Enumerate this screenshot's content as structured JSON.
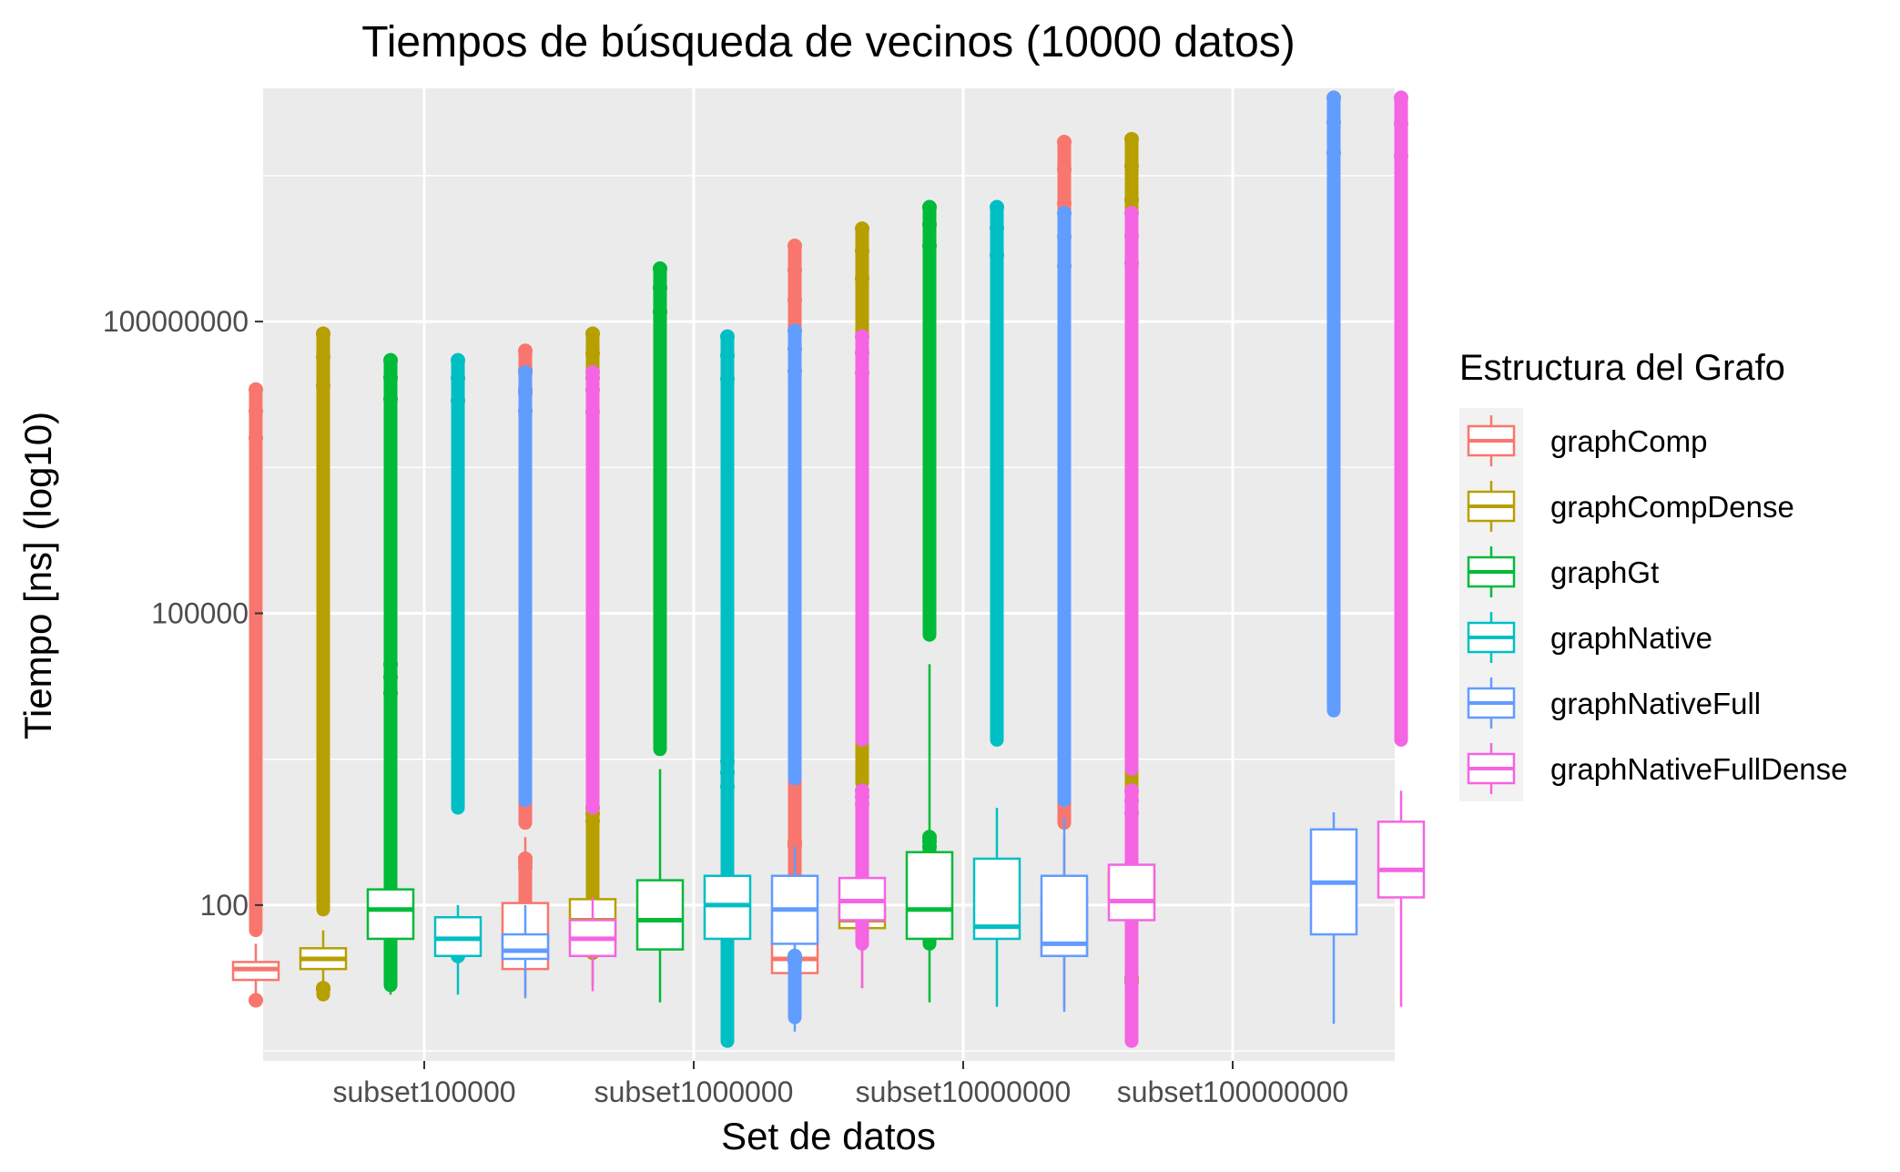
{
  "chart_data": {
    "type": "boxplot",
    "title": "Tiempos de búsqueda de vecinos (10000 datos)",
    "xlabel": "Set de datos",
    "ylabel": "Tiempo [ns] (log10)",
    "y_scale": "log10",
    "ylim": [
      2.5,
      25000000000.0
    ],
    "y_ticks": [
      {
        "value": 100,
        "label": "100"
      },
      {
        "value": 100000,
        "label": "100000"
      },
      {
        "value": 100000000,
        "label": "100000000"
      }
    ],
    "y_minor_ticks": [
      3.16,
      3162,
      3162000,
      3162000000
    ],
    "categories": [
      "subset100000",
      "subset1000000",
      "subset10000000",
      "subset100000000"
    ],
    "grid": true,
    "legend": {
      "title": "Estructura del Grafo",
      "placement": "right"
    },
    "series": [
      {
        "name": "graphComp",
        "color": "#F8766D",
        "boxes": [
          {
            "min": 10.5,
            "q1": 17,
            "median": 22,
            "q3": 26,
            "max": 31,
            "whisker_low": 12,
            "whisker_high": 40,
            "outlier_low": [
              10.5
            ],
            "outlier_high_from": 55,
            "outlier_high_to": 20000000
          },
          {
            "min": 28,
            "q1": 22,
            "median": 45,
            "q3": 105,
            "whisker_low": 12,
            "whisker_high": 500,
            "outlier_low_from": 30,
            "outlier_low_to": 300,
            "outlier_high_from": 700,
            "outlier_high_to": 50000000
          },
          {
            "min": 45,
            "q1": 20,
            "median": 28,
            "q3": 60,
            "whisker_low": 6,
            "whisker_high": 250,
            "outlier_low_from": 160,
            "outlier_low_to": 450,
            "outlier_low_extra": [
              45
            ],
            "outlier_high_from": 350,
            "outlier_high_to": 600000000
          },
          {
            "q1": 30,
            "median": 55,
            "q3": 125,
            "whisker_low": 9,
            "whisker_high": 500,
            "outlier_high_from": 700,
            "outlier_high_to": 7000000000
          }
        ]
      },
      {
        "name": "graphCompDense",
        "color": "#B79F00",
        "boxes": [
          {
            "q1": 22,
            "median": 28,
            "q3": 36,
            "whisker_low": 14,
            "whisker_high": 55,
            "outlier_low_from": 12,
            "outlier_low_to": 14,
            "outlier_high_from": 90,
            "outlier_high_to": 75000000
          },
          {
            "q1": 40,
            "median": 70,
            "q3": 115,
            "whisker_low": 15,
            "whisker_high": 200,
            "outlier_low_from": 32,
            "outlier_low_to": 1000,
            "outlier_high_from": 650,
            "outlier_high_to": 75000000
          },
          {
            "q1": 58,
            "median": 70,
            "q3": 100,
            "whisker_low": 14,
            "whisker_high": 200,
            "outlier_high_from": 1800,
            "outlier_high_to": 900000000
          },
          {
            "q1": 100,
            "median": 140,
            "q3": 220,
            "whisker_low": 18,
            "whisker_high": 500,
            "outlier_low_from": 5,
            "outlier_low_to": 18,
            "outlier_high_from": 900,
            "outlier_high_to": 7500000000
          }
        ]
      },
      {
        "name": "graphGt",
        "color": "#00BA38",
        "boxes": [
          {
            "q1": 45,
            "median": 90,
            "q3": 145,
            "whisker_low": 12,
            "whisker_high": 800,
            "outlier_low_from": 15,
            "outlier_low_to": 30000,
            "outlier_high_from": 1500,
            "outlier_high_to": 40000000
          },
          {
            "q1": 35,
            "median": 70,
            "q3": 180,
            "whisker_low": 10,
            "whisker_high": 2500,
            "outlier_high_from": 4000,
            "outlier_high_to": 350000000
          },
          {
            "q1": 45,
            "median": 90,
            "q3": 350,
            "whisker_low": 10,
            "whisker_high": 30000,
            "outlier_low_from": 40,
            "outlier_low_to": 500,
            "outlier_high_from": 60000,
            "outlier_high_to": 1500000000
          },
          null
        ]
      },
      {
        "name": "graphNative",
        "color": "#00BFC4",
        "boxes": [
          {
            "q1": 30,
            "median": 45,
            "q3": 75,
            "whisker_low": 12,
            "whisker_high": 100,
            "outlier_low": [
              30
            ],
            "outlier_high_from": 1000,
            "outlier_high_to": 40000000
          },
          {
            "q1": 45,
            "median": 100,
            "q3": 200,
            "whisker_low": 13,
            "whisker_high": 300,
            "outlier_low_from": 4,
            "outlier_low_to": 3000,
            "outlier_high_from": 1000,
            "outlier_high_to": 70000000
          },
          {
            "q1": 45,
            "median": 60,
            "q3": 300,
            "whisker_low": 9,
            "whisker_high": 1000,
            "outlier_high_from": 5000,
            "outlier_high_to": 1500000000
          },
          null
        ]
      },
      {
        "name": "graphNativeFull",
        "color": "#619CFF",
        "boxes": [
          {
            "q1": 28,
            "median": 34,
            "q3": 50,
            "whisker_low": 11,
            "whisker_high": 100,
            "outlier_high_from": 1200,
            "outlier_high_to": 30000000
          },
          {
            "q1": 40,
            "median": 90,
            "q3": 200,
            "whisker_low": 5,
            "whisker_high": 400,
            "outlier_low_from": 7,
            "outlier_low_to": 30,
            "outlier_high_from": 2000,
            "outlier_high_to": 80000000
          },
          {
            "q1": 30,
            "median": 40,
            "q3": 200,
            "whisker_low": 8,
            "whisker_high": 800,
            "outlier_high_from": 1200,
            "outlier_high_to": 1300000000
          },
          {
            "q1": 50,
            "median": 170,
            "q3": 600,
            "whisker_low": 6,
            "whisker_high": 900,
            "outlier_high_from": 10000,
            "outlier_high_to": 20000000000
          }
        ]
      },
      {
        "name": "graphNativeFullDense",
        "color": "#F564E3",
        "boxes": [
          {
            "q1": 30,
            "median": 45,
            "q3": 70,
            "whisker_low": 13,
            "whisker_high": 120,
            "outlier_high_from": 1000,
            "outlier_high_to": 30000000
          },
          {
            "q1": 70,
            "median": 110,
            "q3": 190,
            "whisker_low": 14,
            "whisker_high": 450,
            "outlier_low_from": 40,
            "outlier_low_to": 1500,
            "outlier_high_from": 5000,
            "outlier_high_to": 70000000
          },
          {
            "q1": 70,
            "median": 110,
            "q3": 260,
            "whisker_low": 10,
            "whisker_high": 1200,
            "outlier_low_from": 4,
            "outlier_low_to": 1500,
            "outlier_high_from": 2500,
            "outlier_high_to": 1300000000
          },
          {
            "q1": 120,
            "median": 230,
            "q3": 720,
            "whisker_low": 9,
            "whisker_high": 1500,
            "outlier_high_from": 5000,
            "outlier_high_to": 20000000000
          }
        ]
      }
    ]
  }
}
